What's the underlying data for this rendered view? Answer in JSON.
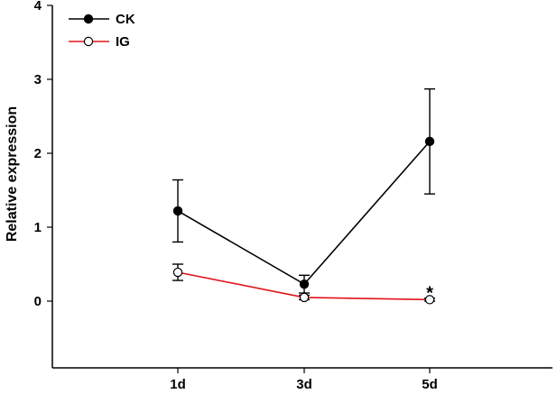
{
  "chart_data": {
    "type": "line",
    "categories": [
      "1d",
      "3d",
      "5d"
    ],
    "xlabel": "",
    "ylabel": "Relative expression",
    "ylim": [
      -0.9,
      4
    ],
    "yticks": [
      0,
      1,
      2,
      3,
      4
    ],
    "grid": false,
    "legend": "top-left",
    "series": [
      {
        "name": "CK",
        "color": "#000000",
        "marker": "filled-circle",
        "values": [
          1.22,
          0.23,
          2.16
        ],
        "errors": [
          0.42,
          0.12,
          0.71
        ]
      },
      {
        "name": "IG",
        "color": "#e0141b",
        "marker": "open-circle",
        "values": [
          0.39,
          0.05,
          0.02
        ],
        "errors": [
          0.11,
          0.03,
          0.02
        ]
      }
    ],
    "annotations": [
      {
        "text": "*",
        "category": "5d",
        "value": 0.08
      }
    ]
  }
}
